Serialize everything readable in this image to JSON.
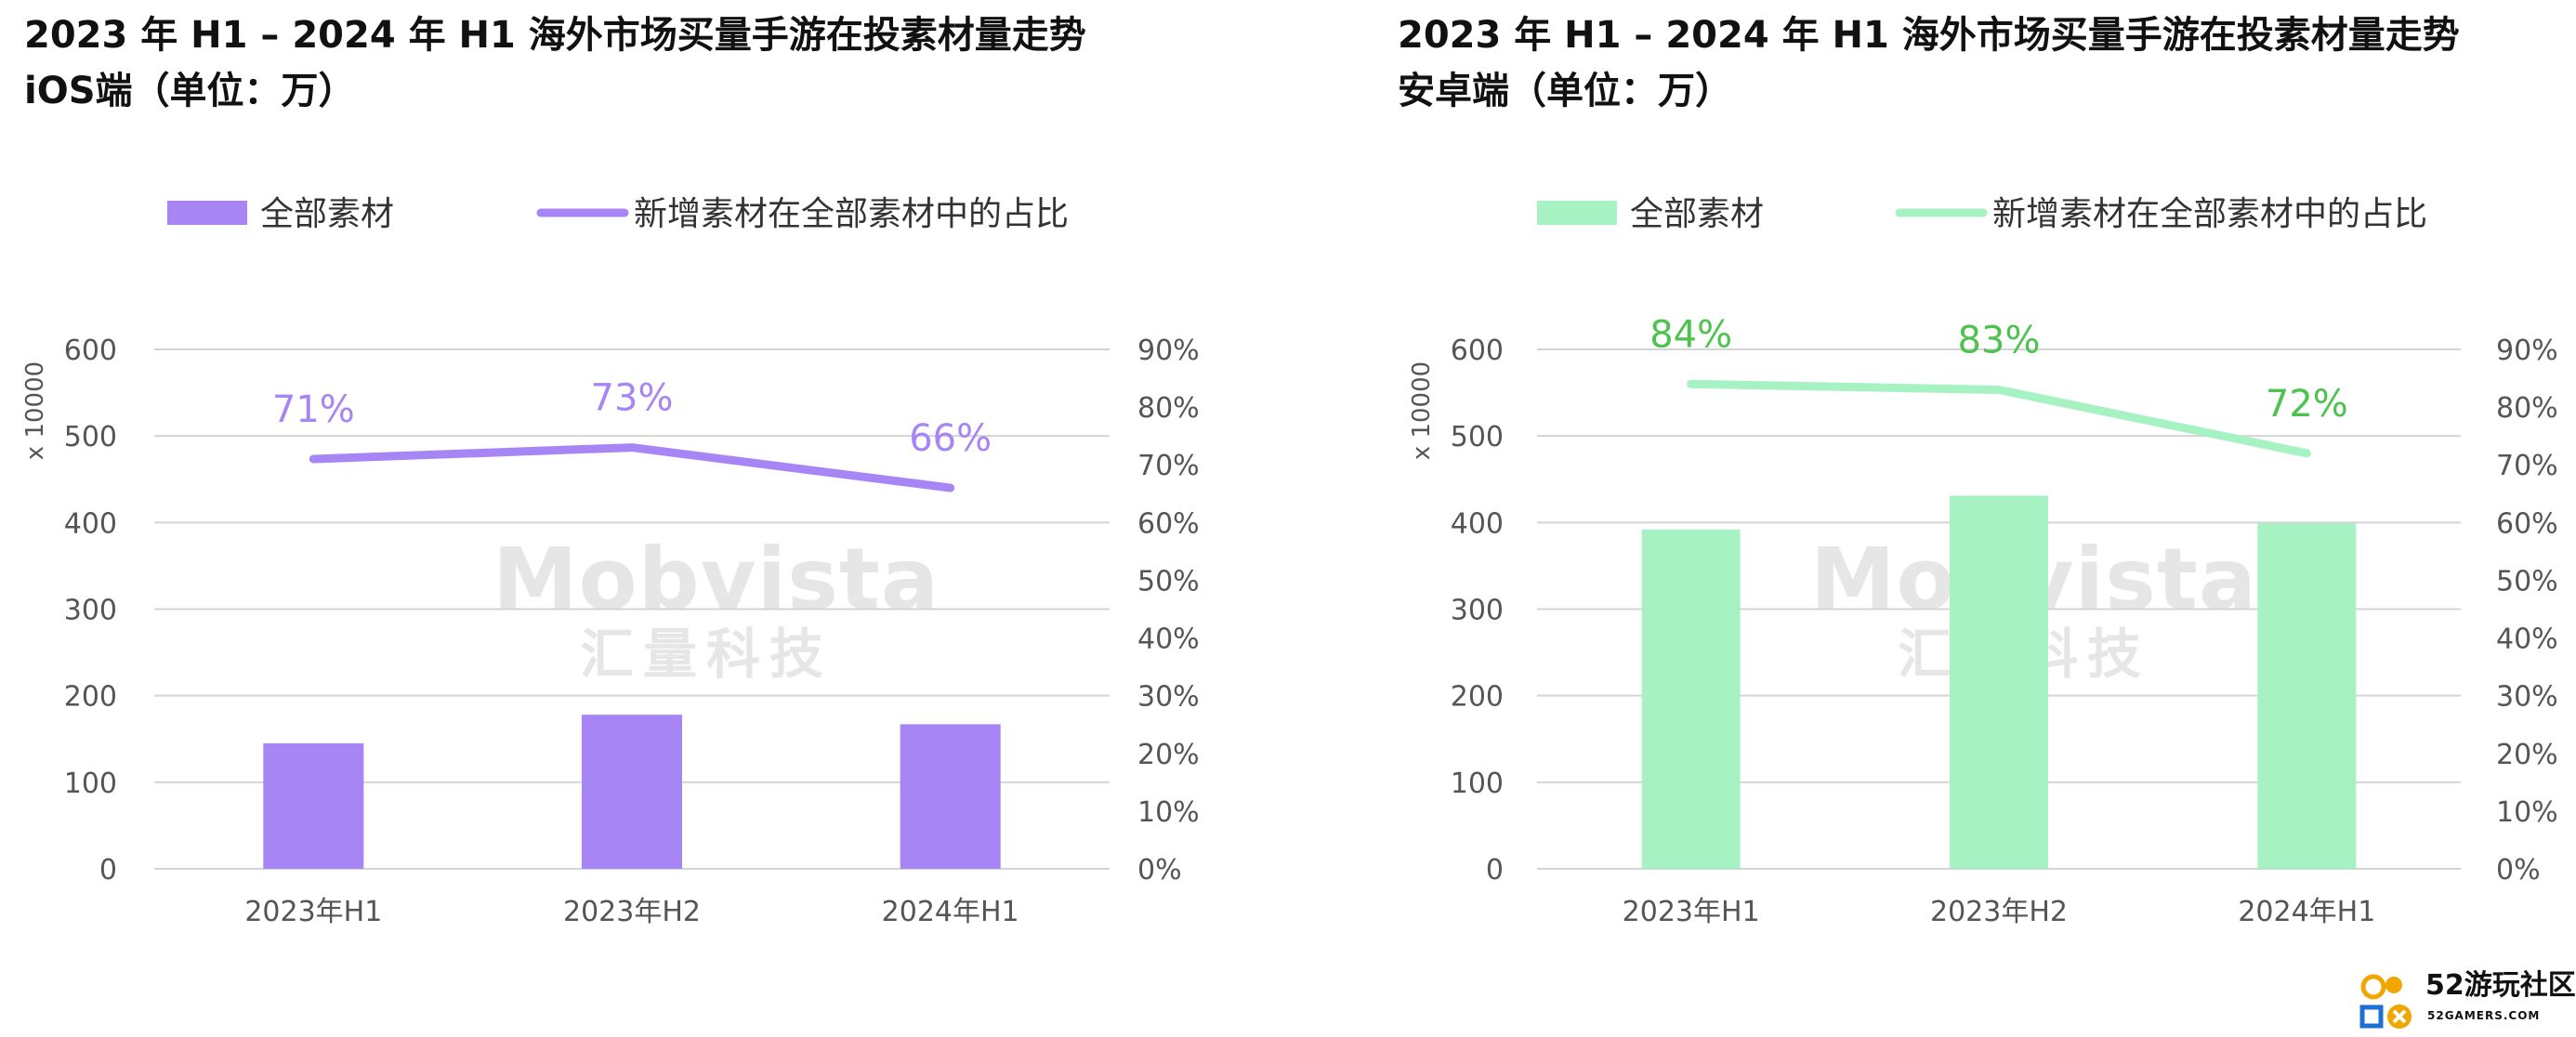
{
  "ios_panel": {
    "title_line1": "2023 年 H1 – 2024 年 H1 海外市场买量手游在投素材量走势",
    "title_line2": "iOS端（单位：万）"
  },
  "android_panel": {
    "title_line1": "2023 年 H1 – 2024 年 H1 海外市场买量手游在投素材量走势",
    "title_line2": "安卓端（单位：万）"
  },
  "watermark": {
    "en": "Mobvista",
    "cn": "汇量科技"
  },
  "site_logo": {
    "text": "52游玩社区",
    "sub": "52GAMERS.COM"
  },
  "colors": {
    "ios_series": "#a885f5",
    "android_bar": "#a6f2c3",
    "android_line": "#a6f2c3",
    "android_label": "#4ec24e",
    "grid": "#d4d4d4",
    "axis_text": "#555555"
  },
  "chart_data": [
    {
      "type": "bar",
      "platform": "iOS",
      "categories": [
        "2023年H1",
        "2023年H2",
        "2024年H1"
      ],
      "ylabel": "x 10000",
      "ylim": [
        0,
        600
      ],
      "yticks": [
        "0",
        "100",
        "200",
        "300",
        "400",
        "500",
        "600"
      ],
      "y2lim": [
        0,
        0.9
      ],
      "y2ticks": [
        "0%",
        "10%",
        "20%",
        "30%",
        "40%",
        "50%",
        "60%",
        "70%",
        "80%",
        "90%"
      ],
      "grid": true,
      "legend_position": "top",
      "series": [
        {
          "name": "全部素材",
          "type": "bar",
          "axis": "left",
          "values": [
            145,
            178,
            167
          ]
        },
        {
          "name": "新增素材在全部素材中的占比",
          "type": "line",
          "axis": "right",
          "values": [
            0.71,
            0.73,
            0.66
          ],
          "labels": [
            "71%",
            "73%",
            "66%"
          ]
        }
      ]
    },
    {
      "type": "bar",
      "platform": "Android",
      "categories": [
        "2023年H1",
        "2023年H2",
        "2024年H1"
      ],
      "ylabel": "x 10000",
      "ylim": [
        0,
        600
      ],
      "yticks": [
        "0",
        "100",
        "200",
        "300",
        "400",
        "500",
        "600"
      ],
      "y2lim": [
        0,
        0.9
      ],
      "y2ticks": [
        "0%",
        "10%",
        "20%",
        "30%",
        "40%",
        "50%",
        "60%",
        "70%",
        "80%",
        "90%"
      ],
      "grid": true,
      "legend_position": "top",
      "series": [
        {
          "name": "全部素材",
          "type": "bar",
          "axis": "left",
          "values": [
            392,
            431,
            399
          ]
        },
        {
          "name": "新增素材在全部素材中的占比",
          "type": "line",
          "axis": "right",
          "values": [
            0.84,
            0.83,
            0.72
          ],
          "labels": [
            "84%",
            "83%",
            "72%"
          ]
        }
      ]
    }
  ]
}
